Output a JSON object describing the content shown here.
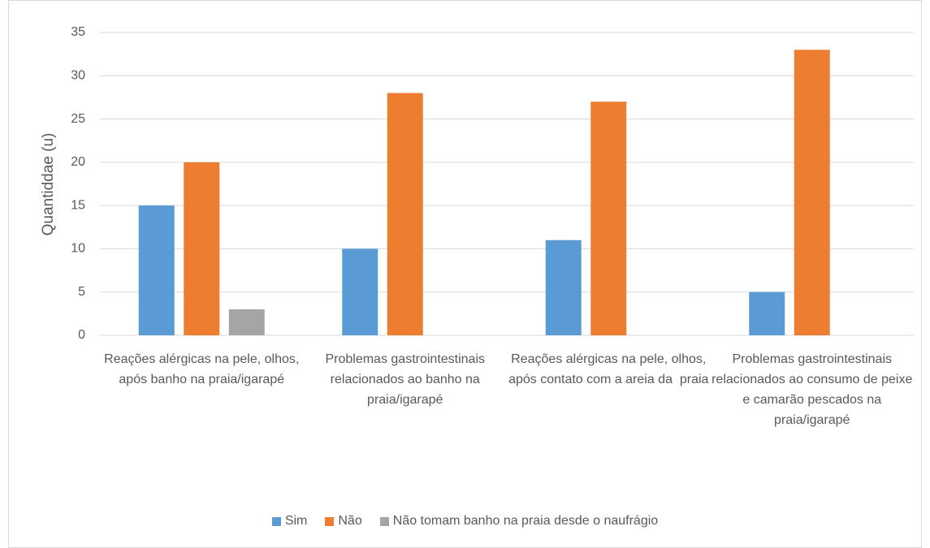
{
  "chart_data": {
    "type": "bar",
    "y_label": "Quantiddae (u)",
    "categories": [
      "Reações alérgicas na pele, olhos, após banho na praia/igarapé",
      "Problemas gastrointestinais relacionados ao banho na praia/igarapé",
      "Reações alérgicas na pele, olhos, após contato com a areia da  praia",
      "Problemas gastrointestinais relacionados ao consumo de peixe e camarão pescados na praia/igarapé"
    ],
    "series": [
      {
        "name": "Sim",
        "color": "#5b9bd5",
        "values": [
          15,
          10,
          11,
          5
        ]
      },
      {
        "name": "Não",
        "color": "#ed7d31",
        "values": [
          20,
          28,
          27,
          33
        ]
      },
      {
        "name": "Não tomam banho na praia desde o naufrágio",
        "color": "#a5a5a5",
        "values": [
          3,
          null,
          null,
          null
        ]
      }
    ],
    "ylim": [
      0,
      35
    ],
    "yticks": [
      0,
      5,
      10,
      15,
      20,
      25,
      30,
      35
    ],
    "grid": true,
    "legend": "bottom"
  }
}
